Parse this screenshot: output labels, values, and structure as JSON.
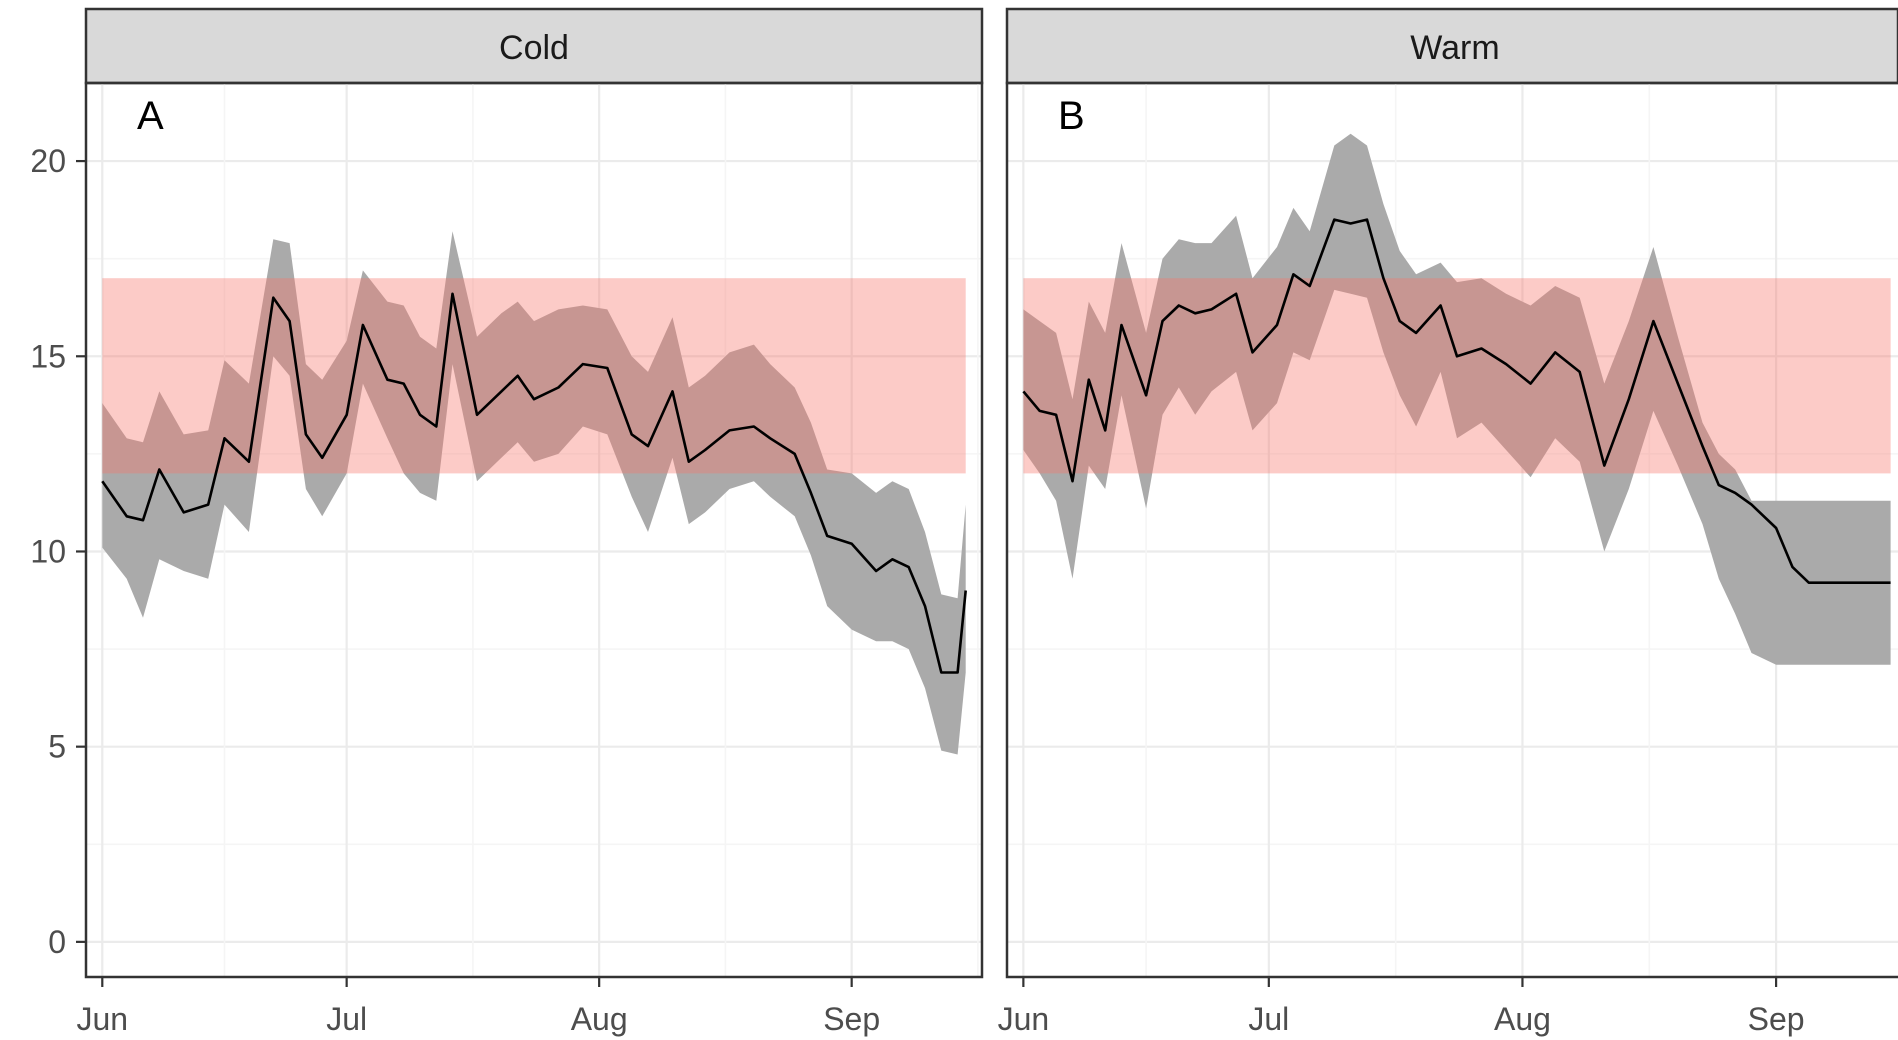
{
  "colors": {
    "background": "#ffffff",
    "grid_major": "#ebebeb",
    "grid_minor": "#f5f5f5",
    "strip_fill": "#d9d9d9",
    "panel_border": "#333333",
    "ensemble_band": "#aaaaaa",
    "optimal_range": "#f8766d",
    "mean_line": "#000000",
    "tick_text": "#4d4d4d"
  },
  "chart_data": [
    {
      "type": "line",
      "facet": "Cold",
      "panel_tag": "A",
      "x_ticks": [
        "Jun",
        "Jul",
        "Aug",
        "Sep"
      ],
      "y_ticks": [
        "0",
        "5",
        "10",
        "15",
        "20"
      ],
      "ylim": [
        -0.9,
        22
      ],
      "xlim": [
        "2023-05-30",
        "2023-09-17"
      ],
      "optimal_range": [
        12,
        17
      ],
      "x": [
        "2023-06-01",
        "2023-06-04",
        "2023-06-06",
        "2023-06-08",
        "2023-06-11",
        "2023-06-14",
        "2023-06-16",
        "2023-06-19",
        "2023-06-22",
        "2023-06-24",
        "2023-06-26",
        "2023-06-28",
        "2023-07-01",
        "2023-07-03",
        "2023-07-06",
        "2023-07-08",
        "2023-07-10",
        "2023-07-12",
        "2023-07-14",
        "2023-07-17",
        "2023-07-20",
        "2023-07-22",
        "2023-07-24",
        "2023-07-27",
        "2023-07-30",
        "2023-08-02",
        "2023-08-05",
        "2023-08-07",
        "2023-08-10",
        "2023-08-12",
        "2023-08-14",
        "2023-08-17",
        "2023-08-20",
        "2023-08-22",
        "2023-08-25",
        "2023-08-27",
        "2023-08-29",
        "2023-09-01",
        "2023-09-04",
        "2023-09-06",
        "2023-09-08",
        "2023-09-10",
        "2023-09-12",
        "2023-09-14",
        "2023-09-15"
      ],
      "series": [
        {
          "values": [
            11.8,
            10.9,
            10.8,
            12.1,
            11.0,
            11.2,
            12.9,
            12.3,
            16.5,
            15.9,
            13.0,
            12.4,
            13.5,
            15.8,
            14.4,
            14.3,
            13.5,
            13.2,
            16.6,
            13.5,
            14.1,
            14.5,
            13.9,
            14.2,
            14.8,
            14.7,
            13.0,
            12.7,
            14.1,
            12.3,
            12.6,
            13.1,
            13.2,
            12.9,
            12.5,
            11.5,
            10.4,
            10.2,
            9.5,
            9.8,
            9.6,
            8.6,
            6.9,
            6.9,
            9.0
          ]
        },
        {
          "values": [
            10.1,
            9.3,
            8.3,
            9.8,
            9.5,
            9.3,
            11.2,
            10.5,
            15.0,
            14.5,
            11.6,
            10.9,
            12.0,
            14.3,
            12.9,
            12.0,
            11.5,
            11.3,
            14.8,
            11.8,
            12.4,
            12.8,
            12.3,
            12.5,
            13.2,
            13.0,
            11.4,
            10.5,
            12.4,
            10.7,
            11.0,
            11.6,
            11.8,
            11.4,
            10.9,
            9.9,
            8.6,
            8.0,
            7.7,
            7.7,
            7.5,
            6.5,
            4.9,
            4.8,
            6.9
          ]
        },
        {
          "values": [
            13.8,
            12.9,
            12.8,
            14.1,
            13.0,
            13.1,
            14.9,
            14.3,
            18.0,
            17.9,
            14.8,
            14.4,
            15.4,
            17.2,
            16.4,
            16.3,
            15.5,
            15.2,
            18.2,
            15.5,
            16.1,
            16.4,
            15.9,
            16.2,
            16.3,
            16.2,
            15.0,
            14.6,
            16.0,
            14.2,
            14.5,
            15.1,
            15.3,
            14.8,
            14.2,
            13.3,
            12.1,
            12.0,
            11.5,
            11.8,
            11.6,
            10.5,
            8.9,
            8.8,
            11.2
          ]
        }
      ]
    },
    {
      "type": "line",
      "facet": "Warm",
      "panel_tag": "B",
      "x_ticks": [
        "Jun",
        "Jul",
        "Aug",
        "Sep"
      ],
      "y_ticks": [
        "0",
        "5",
        "10",
        "15",
        "20"
      ],
      "ylim": [
        -0.9,
        22
      ],
      "xlim": [
        "2023-05-30",
        "2023-09-17"
      ],
      "optimal_range": [
        12,
        17
      ],
      "x": [
        "2023-06-01",
        "2023-06-03",
        "2023-06-05",
        "2023-06-07",
        "2023-06-09",
        "2023-06-11",
        "2023-06-13",
        "2023-06-16",
        "2023-06-18",
        "2023-06-20",
        "2023-06-22",
        "2023-06-24",
        "2023-06-27",
        "2023-06-29",
        "2023-07-02",
        "2023-07-04",
        "2023-07-06",
        "2023-07-09",
        "2023-07-11",
        "2023-07-13",
        "2023-07-15",
        "2023-07-17",
        "2023-07-19",
        "2023-07-22",
        "2023-07-24",
        "2023-07-27",
        "2023-07-30",
        "2023-08-02",
        "2023-08-05",
        "2023-08-08",
        "2023-08-11",
        "2023-08-14",
        "2023-08-17",
        "2023-08-20",
        "2023-08-23",
        "2023-08-25",
        "2023-08-27",
        "2023-08-29",
        "2023-09-01",
        "2023-09-03",
        "2023-09-05",
        "2023-09-07",
        "2023-09-09",
        "2023-09-11",
        "2023-09-13",
        "2023-09-15"
      ],
      "series": [
        {
          "values": [
            14.1,
            13.6,
            13.5,
            11.8,
            14.4,
            13.1,
            15.8,
            14.0,
            15.9,
            16.3,
            16.1,
            16.2,
            16.6,
            15.1,
            15.8,
            17.1,
            16.8,
            18.5,
            18.4,
            18.5,
            17.0,
            15.9,
            15.6,
            16.3,
            15.0,
            15.2,
            14.8,
            14.3,
            15.1,
            14.6,
            12.2,
            13.9,
            15.9,
            14.3,
            12.7,
            11.7,
            11.5,
            11.2,
            10.6,
            9.6,
            9.2,
            9.2,
            9.2,
            9.2,
            9.2,
            9.2
          ]
        },
        {
          "values": [
            12.6,
            12.0,
            11.3,
            9.3,
            12.2,
            11.6,
            14.0,
            11.1,
            13.5,
            14.2,
            13.5,
            14.1,
            14.6,
            13.1,
            13.8,
            15.1,
            14.9,
            16.7,
            16.6,
            16.5,
            15.1,
            14.0,
            13.2,
            14.6,
            12.9,
            13.3,
            12.6,
            11.9,
            12.9,
            12.3,
            10.0,
            11.6,
            13.6,
            12.2,
            10.7,
            9.3,
            8.4,
            7.4,
            7.1,
            7.1,
            7.1,
            7.1,
            7.1,
            7.1,
            7.1,
            7.1
          ]
        },
        {
          "values": [
            16.2,
            15.9,
            15.6,
            13.9,
            16.4,
            15.6,
            17.9,
            15.6,
            17.5,
            18.0,
            17.9,
            17.9,
            18.6,
            17.0,
            17.8,
            18.8,
            18.2,
            20.4,
            20.7,
            20.4,
            18.9,
            17.7,
            17.1,
            17.4,
            16.9,
            17.0,
            16.6,
            16.3,
            16.8,
            16.5,
            14.3,
            15.9,
            17.8,
            15.5,
            13.3,
            12.5,
            12.1,
            11.3,
            11.3,
            11.3,
            11.3,
            11.3,
            11.3,
            11.3,
            11.3,
            11.3
          ]
        }
      ]
    }
  ]
}
